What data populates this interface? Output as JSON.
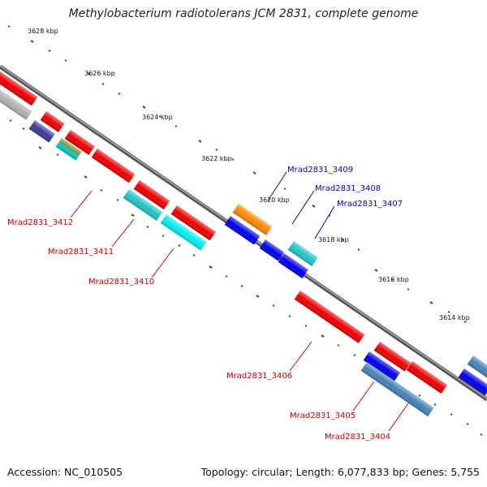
{
  "title": "Methylobacterium radiotolerans JCM 2831, complete genome",
  "footer": {
    "accession": "Accession: NC_010505",
    "summary": "Topology: circular; Length: 6,077,833 bp; Genes: 5,755"
  },
  "colors": {
    "label_blue": "#0000cc",
    "label_red": "#cc0000",
    "backbone": "#777777",
    "tick_green": "#007700"
  },
  "kbp_labels": [
    "3628 kbp",
    "3626 kbp",
    "3624 kbp",
    "3622 kbp",
    "3620 kbp",
    "3618 kbp",
    "3616 kbp",
    "3614 kbp"
  ],
  "gene_labels_top": [
    "Mrad2831_3409",
    "Mrad2831_3408",
    "Mrad2831_3407"
  ],
  "gene_labels_bottom": [
    "Mrad2831_3412",
    "Mrad2831_3411",
    "Mrad2831_3410",
    "Mrad2831_3406",
    "Mrad2831_3405",
    "Mrad2831_3404"
  ]
}
